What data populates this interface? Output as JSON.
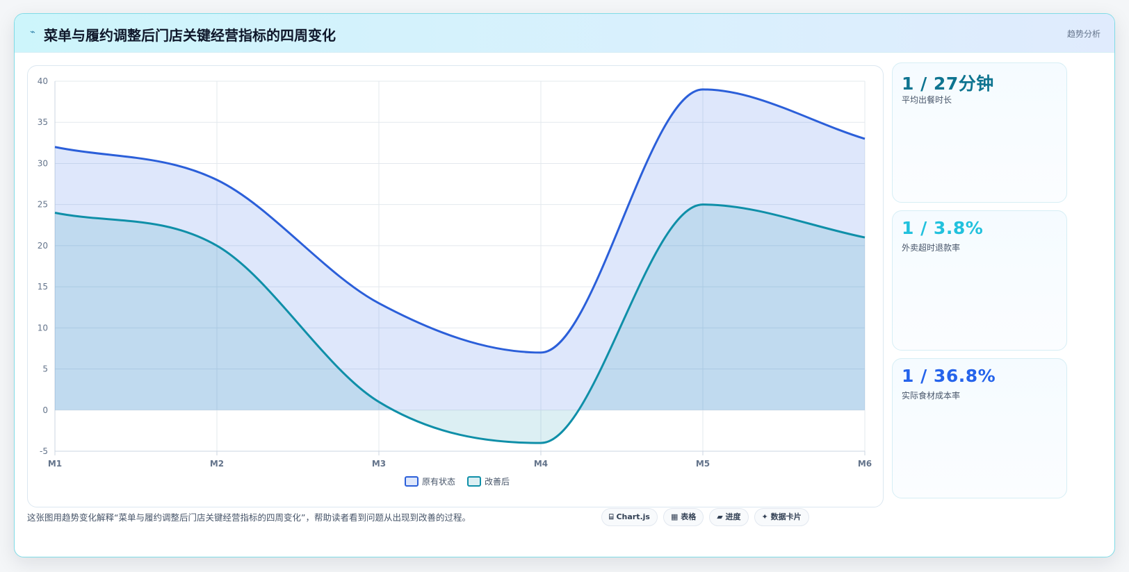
{
  "header": {
    "icon": "chart-spark-icon",
    "title": "菜单与履约调整后门店关键经营指标的四周变化",
    "tag": "趋势分析"
  },
  "kpis": [
    {
      "value": "1 / 27分钟",
      "label": "平均出餐时长",
      "color": "#0e7490"
    },
    {
      "value": "1 / 3.8%",
      "label": "外卖超时退款率",
      "color": "#22c1dd"
    },
    {
      "value": "1 / 36.8%",
      "label": "实际食材成本率",
      "color": "#2563eb"
    }
  ],
  "footer": {
    "caption": "这张图用趋势变化解释“菜单与履约调整后门店关键经营指标的四周变化”，帮助读者看到问题从出现到改善的过程。",
    "chips": [
      {
        "icon": "code-icon",
        "label": "Chart.js"
      },
      {
        "icon": "table-icon",
        "label": "表格"
      },
      {
        "icon": "folder-icon",
        "label": "进度"
      },
      {
        "icon": "sparkle-icon",
        "label": "数据卡片"
      }
    ]
  },
  "chart_data": {
    "type": "area",
    "categories": [
      "M1",
      "M2",
      "M3",
      "M4",
      "M5",
      "M6"
    ],
    "series": [
      {
        "name": "原有状态",
        "values": [
          32,
          28,
          13,
          7,
          39,
          33
        ],
        "color": "#2b5fd9",
        "fill": "rgba(59,111,233,0.17)"
      },
      {
        "name": "改善后",
        "values": [
          24,
          20,
          1,
          -4,
          25,
          21
        ],
        "color": "#0f8fa8",
        "fill": "rgba(20,150,175,0.15)"
      }
    ],
    "ylim": [
      -5,
      40
    ],
    "yticks": [
      -5,
      0,
      5,
      10,
      15,
      20,
      25,
      30,
      35,
      40
    ],
    "grid": true,
    "legend": "bottom"
  }
}
